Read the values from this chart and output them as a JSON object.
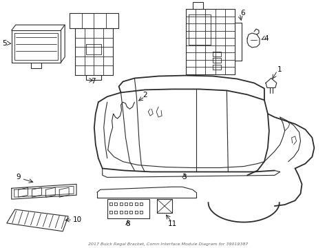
{
  "title": "2017 Buick Regal Bracket, Comn Interface Module Diagram for 39019387",
  "background_color": "#ffffff",
  "line_color": "#2a2a2a",
  "label_color": "#000000",
  "figsize": [
    4.89,
    3.6
  ],
  "dpi": 100
}
